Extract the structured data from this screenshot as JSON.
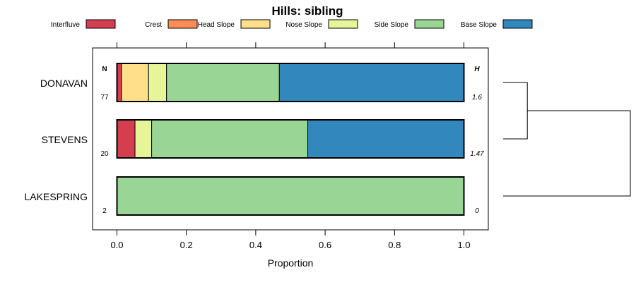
{
  "chart_data": {
    "type": "bar",
    "orientation": "horizontal",
    "stacked": true,
    "title": "Hills: sibling",
    "xlabel": "Proportion",
    "ylabel": "",
    "xlim": [
      0,
      1
    ],
    "x_ticks": [
      "0.0",
      "0.2",
      "0.4",
      "0.6",
      "0.8",
      "1.0"
    ],
    "x_tick_values": [
      0,
      0.2,
      0.4,
      0.6,
      0.8,
      1.0
    ],
    "legend_position": "top",
    "n_header": "N",
    "h_header": "H",
    "series": [
      {
        "name": "Interfluve",
        "color": "#D53E4F",
        "values": [
          0.013,
          0.052,
          0
        ]
      },
      {
        "name": "Crest",
        "color": "#FC8D59",
        "values": [
          0,
          0,
          0
        ]
      },
      {
        "name": "Head Slope",
        "color": "#FEE08B",
        "values": [
          0.078,
          0,
          0
        ]
      },
      {
        "name": "Nose Slope",
        "color": "#E6F598",
        "values": [
          0.052,
          0.048,
          0
        ]
      },
      {
        "name": "Side Slope",
        "color": "#99D594",
        "values": [
          0.325,
          0.45,
          1.0
        ]
      },
      {
        "name": "Base Slope",
        "color": "#3288BD",
        "values": [
          0.532,
          0.45,
          0
        ]
      }
    ],
    "categories": [
      {
        "name": "DONAVAN",
        "n": "77",
        "h": "1.6"
      },
      {
        "name": "STEVENS",
        "n": "20",
        "h": "1.47"
      },
      {
        "name": "LAKESPRING",
        "n": "2",
        "h": "0"
      }
    ],
    "dendrogram": {
      "merges": [
        {
          "members": [
            "DONAVAN",
            "STEVENS"
          ],
          "height": 0.19
        },
        {
          "members": [
            "DONAVAN+STEVENS",
            "LAKESPRING"
          ],
          "height": 1.0
        }
      ]
    }
  }
}
